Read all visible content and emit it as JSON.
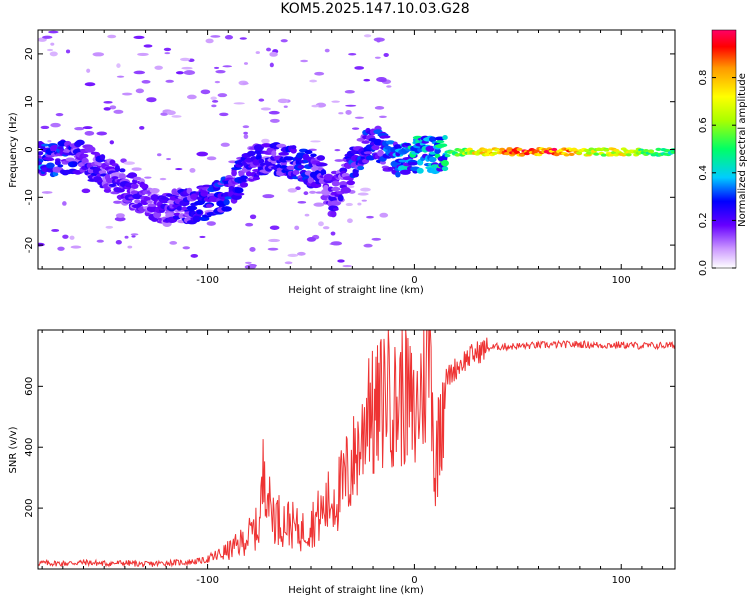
{
  "title": "KOM5.2025.147.10.03.G28",
  "chart_data": [
    {
      "type": "heatmap",
      "xlabel": "Height of straight line (km)",
      "ylabel": "Frequency (Hz)",
      "xlim": [
        -182,
        126
      ],
      "ylim": [
        -25,
        25
      ],
      "xticks": [
        -100,
        0,
        100
      ],
      "yticks": [
        -20,
        -10,
        0,
        10,
        20
      ],
      "colorbar": {
        "label": "Normalized spectral amplitude",
        "range": [
          0.0,
          1.0
        ],
        "ticks": [
          0.0,
          0.2,
          0.4,
          0.6,
          0.8
        ],
        "colors": [
          "#ffffff",
          "#cc99ff",
          "#6600ff",
          "#0000ff",
          "#00ccff",
          "#00ff66",
          "#aaff00",
          "#ffff00",
          "#ff9900",
          "#ff0000",
          "#ff0066"
        ]
      },
      "ridge": [
        {
          "x": -170,
          "f": -2,
          "a": 0.3
        },
        {
          "x": -160,
          "f": -2,
          "a": 0.25
        },
        {
          "x": -125,
          "f": -12,
          "a": 0.2
        },
        {
          "x": -110,
          "f": -12,
          "a": 0.25
        },
        {
          "x": -100,
          "f": -11,
          "a": 0.3
        },
        {
          "x": -90,
          "f": -9,
          "a": 0.3
        },
        {
          "x": -80,
          "f": -3,
          "a": 0.25
        },
        {
          "x": -65,
          "f": -2,
          "a": 0.25
        },
        {
          "x": -55,
          "f": -3,
          "a": 0.3
        },
        {
          "x": -45,
          "f": -5,
          "a": 0.25
        },
        {
          "x": -40,
          "f": -11,
          "a": 0.2
        },
        {
          "x": -30,
          "f": -3,
          "a": 0.3
        },
        {
          "x": -20,
          "f": 2,
          "a": 0.3
        },
        {
          "x": -10,
          "f": -2,
          "a": 0.35
        },
        {
          "x": 0,
          "f": -1,
          "a": 0.45
        },
        {
          "x": 10,
          "f": -1,
          "a": 0.5
        },
        {
          "x": 20,
          "f": -0.5,
          "a": 0.55
        },
        {
          "x": 30,
          "f": -0.5,
          "a": 0.8
        },
        {
          "x": 50,
          "f": -0.5,
          "a": 0.95
        },
        {
          "x": 70,
          "f": -0.5,
          "a": 0.95
        },
        {
          "x": 90,
          "f": -0.5,
          "a": 0.7
        },
        {
          "x": 100,
          "f": -0.5,
          "a": 0.8
        },
        {
          "x": 110,
          "f": -0.5,
          "a": 0.6
        },
        {
          "x": 126,
          "f": -0.5,
          "a": 0.5
        }
      ]
    },
    {
      "type": "line",
      "xlabel": "Height of straight line (km)",
      "ylabel": "SNR (v/v)",
      "xlim": [
        -182,
        126
      ],
      "ylim": [
        0,
        785
      ],
      "xticks": [
        -100,
        0,
        100
      ],
      "yticks": [
        200,
        400,
        600
      ],
      "series": [
        {
          "color": "#ee3333",
          "points": [
            [
              -182,
              20
            ],
            [
              -170,
              18
            ],
            [
              -160,
              22
            ],
            [
              -150,
              18
            ],
            [
              -140,
              20
            ],
            [
              -130,
              15
            ],
            [
              -120,
              20
            ],
            [
              -110,
              22
            ],
            [
              -100,
              30
            ],
            [
              -95,
              45
            ],
            [
              -90,
              60
            ],
            [
              -85,
              80
            ],
            [
              -80,
              110
            ],
            [
              -75,
              140
            ],
            [
              -72,
              390
            ],
            [
              -70,
              200
            ],
            [
              -65,
              160
            ],
            [
              -60,
              150
            ],
            [
              -55,
              120
            ],
            [
              -50,
              150
            ],
            [
              -45,
              180
            ],
            [
              -40,
              230
            ],
            [
              -35,
              260
            ],
            [
              -30,
              350
            ],
            [
              -25,
              430
            ],
            [
              -22,
              610
            ],
            [
              -20,
              480
            ],
            [
              -15,
              560
            ],
            [
              -12,
              700
            ],
            [
              -10,
              520
            ],
            [
              -5,
              600
            ],
            [
              0,
              480
            ],
            [
              5,
              650
            ],
            [
              8,
              780
            ],
            [
              10,
              250
            ],
            [
              12,
              520
            ],
            [
              15,
              620
            ],
            [
              20,
              660
            ],
            [
              25,
              690
            ],
            [
              30,
              710
            ],
            [
              35,
              725
            ],
            [
              40,
              730
            ],
            [
              50,
              732
            ],
            [
              60,
              735
            ],
            [
              70,
              737
            ],
            [
              80,
              738
            ],
            [
              90,
              735
            ],
            [
              100,
              736
            ],
            [
              110,
              733
            ],
            [
              120,
              734
            ],
            [
              126,
              735
            ]
          ]
        }
      ]
    }
  ]
}
